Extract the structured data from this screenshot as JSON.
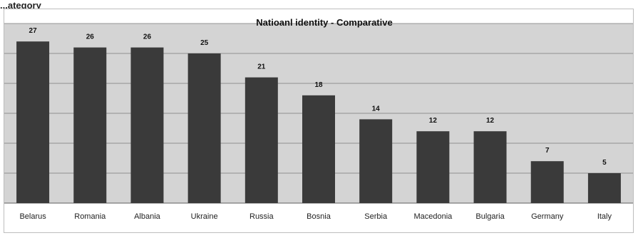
{
  "page": {
    "top_caption": "...ategory"
  },
  "colors": {
    "plot_background": "#d4d4d4",
    "bar": "#3a3a3a",
    "gridline": "#7a7a7a"
  },
  "chart_data": {
    "type": "bar",
    "title": "Natioanl identity - Comparative",
    "xlabel": "",
    "ylabel": "",
    "categories": [
      "Belarus",
      "Romania",
      "Albania",
      "Ukraine",
      "Russia",
      "Bosnia",
      "Serbia",
      "Macedonia",
      "Bulgaria",
      "Germany",
      "Italy"
    ],
    "values": [
      27,
      26,
      26,
      25,
      21,
      18,
      14,
      12,
      12,
      7,
      5
    ],
    "ylim": [
      0,
      30
    ],
    "grid": true,
    "legend": "none"
  }
}
